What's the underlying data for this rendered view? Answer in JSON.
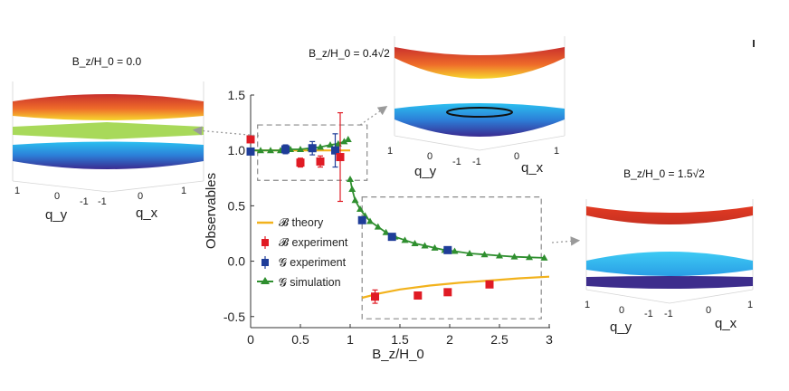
{
  "chart_data": {
    "type": "scatter",
    "xlabel": "B_z/H_0",
    "ylabel": "Observables",
    "xlim": [
      0,
      3
    ],
    "ylim": [
      -0.6,
      1.5
    ],
    "xticks": [
      "0",
      "0.5",
      "1",
      "1.5",
      "2",
      "2.5",
      "3"
    ],
    "yticks": [
      "1.5",
      "1.0",
      "0.5",
      "0.0",
      "-0.5"
    ],
    "xtick_values": [
      0,
      0.5,
      1,
      1.5,
      2,
      2.5,
      3
    ],
    "ytick_values": [
      1.5,
      1.0,
      0.5,
      0.0,
      -0.5
    ],
    "colors": {
      "theory": "#f2b21c",
      "b_exp": "#e01b24",
      "g_exp": "#1f3d99",
      "sim": "#2f8f2f"
    },
    "series": [
      {
        "name": "theory",
        "label": "𝓑 theory",
        "kind": "line",
        "x": [
          0.0,
          0.3,
          0.6,
          0.9,
          1.0,
          1.12,
          1.3,
          1.5,
          1.8,
          2.1,
          2.4,
          2.7,
          3.0
        ],
        "y": [
          1.0,
          1.0,
          1.0,
          1.0,
          1.0,
          -0.33,
          -0.29,
          -0.255,
          -0.22,
          -0.195,
          -0.175,
          -0.155,
          -0.14
        ]
      },
      {
        "name": "b_exp",
        "label": "𝓑 experiment",
        "kind": "square",
        "x": [
          0.0,
          0.5,
          0.7,
          0.9,
          1.25,
          1.68,
          1.98,
          2.4
        ],
        "y": [
          1.1,
          0.89,
          0.9,
          0.94,
          -0.32,
          -0.31,
          -0.28,
          -0.21
        ],
        "err": [
          0,
          0.04,
          0.05,
          0.4,
          0.06,
          0.02,
          0.02,
          0.02
        ]
      },
      {
        "name": "g_exp",
        "label": "𝓖 experiment",
        "kind": "square",
        "x": [
          0.0,
          0.35,
          0.62,
          0.85,
          1.12,
          1.42,
          1.98
        ],
        "y": [
          0.99,
          1.01,
          1.02,
          1.0,
          0.37,
          0.22,
          0.1
        ],
        "err": [
          0.02,
          0.04,
          0.06,
          0.15,
          0.02,
          0.01,
          0.01
        ]
      },
      {
        "name": "sim",
        "label": "𝓖 simulation",
        "kind": "triangle-line",
        "x": [
          0.0,
          0.1,
          0.2,
          0.3,
          0.4,
          0.5,
          0.6,
          0.7,
          0.8,
          0.88,
          0.94,
          0.98,
          1.0,
          1.02,
          1.05,
          1.1,
          1.15,
          1.2,
          1.28,
          1.36,
          1.45,
          1.55,
          1.65,
          1.75,
          1.85,
          1.95,
          2.05,
          2.2,
          2.35,
          2.5,
          2.65,
          2.8,
          2.95
        ],
        "y": [
          1.0,
          1.0,
          1.0,
          1.0,
          1.01,
          1.01,
          1.02,
          1.03,
          1.05,
          1.06,
          1.08,
          1.1,
          0.74,
          0.65,
          0.55,
          0.47,
          0.41,
          0.36,
          0.31,
          0.26,
          0.22,
          0.19,
          0.16,
          0.14,
          0.12,
          0.1,
          0.09,
          0.07,
          0.06,
          0.05,
          0.04,
          0.035,
          0.03
        ]
      }
    ],
    "legend": "lower-left",
    "zoom_boxes": [
      {
        "xlim": [
          0.07,
          1.17
        ],
        "ylim": [
          0.73,
          1.23
        ]
      },
      {
        "xlim": [
          1.12,
          2.92
        ],
        "ylim": [
          -0.52,
          0.58
        ]
      }
    ]
  },
  "insets": {
    "left": {
      "title": "B_z/H_0 = 0.0",
      "q_y": "q_y",
      "q_x": "q_x",
      "ticks": [
        "1",
        "0",
        "-1",
        "-1",
        "0",
        "1"
      ]
    },
    "top": {
      "title": "B_z/H_0 = 0.4√2",
      "q_y": "q_y",
      "q_x": "q_x",
      "ticks": [
        "1",
        "0",
        "-1",
        "-1",
        "0",
        "1"
      ]
    },
    "right": {
      "title": "B_z/H_0 = 1.5√2",
      "q_y": "q_y",
      "q_x": "q_x",
      "ticks": [
        "1",
        "0",
        "-1",
        "-1",
        "0",
        "1"
      ]
    }
  }
}
